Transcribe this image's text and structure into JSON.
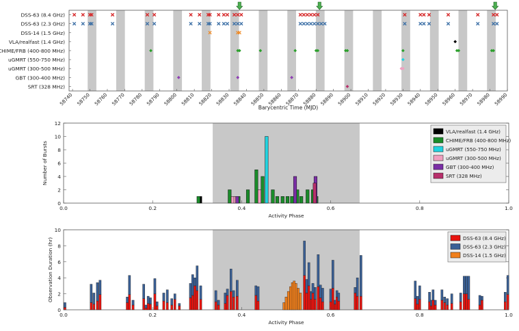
{
  "chart_data": [
    {
      "type": "scatter",
      "title": "",
      "xlabel": "Barycentric Time (MJD)",
      "ylabel": "",
      "xlim": [
        58738,
        58990
      ],
      "xticks": [
        58740,
        58750,
        58760,
        58770,
        58780,
        58790,
        58800,
        58810,
        58820,
        58830,
        58840,
        58850,
        58860,
        58870,
        58880,
        58890,
        58900,
        58910,
        58920,
        58930,
        58940,
        58950,
        58960,
        58970,
        58980,
        58990
      ],
      "rows": [
        "DSS-63 (8.4 GHz)",
        "DSS-63 (2.3 GHz)",
        "DSS-14 (1.5 GHz)",
        "VLA/realfast (1.4 GHz)",
        "CHIME/FRB (400-800 MHz)",
        "uGMRT (550-750 MHz)",
        "uGMRT (300-500 MHz)",
        "GBT (300-400 MHz)",
        "SRT (328 MHz)"
      ],
      "active_windows": [
        [
          58748.7,
          58753.7
        ],
        [
          58765.1,
          58770.1
        ],
        [
          58781.5,
          58786.5
        ],
        [
          58797.9,
          58802.9
        ],
        [
          58814.3,
          58819.3
        ],
        [
          58830.7,
          58835.7
        ],
        [
          58847.1,
          58852.1
        ],
        [
          58863.5,
          58868.5
        ],
        [
          58879.9,
          58884.9
        ],
        [
          58896.3,
          58901.3
        ],
        [
          58912.7,
          58917.7
        ],
        [
          58929.1,
          58934.1
        ],
        [
          58945.5,
          58950.5
        ],
        [
          58961.9,
          58966.9
        ],
        [
          58978.3,
          58983.3
        ]
      ],
      "detection_arrows_mjd": [
        58836,
        58882,
        58983
      ],
      "series": [
        {
          "name": "DSS-63 (8.4 GHz)",
          "row": 0,
          "marker": "x",
          "color": "#d62728",
          "x": [
            58741,
            58746,
            58750,
            58751,
            58763,
            58783,
            58787,
            58808,
            58813,
            58818,
            58819,
            58824,
            58827,
            58829,
            58833,
            58835,
            58837,
            58871,
            58873,
            58875,
            58877,
            58879,
            58881,
            58931,
            58940,
            58942,
            58945,
            58956,
            58973,
            58982,
            58984
          ]
        },
        {
          "name": "DSS-63 (2.3 GHz)",
          "row": 1,
          "marker": "x",
          "color": "#3a6ea5",
          "x": [
            58741,
            58746,
            58750,
            58751,
            58763,
            58783,
            58787,
            58808,
            58813,
            58818,
            58819,
            58824,
            58827,
            58829,
            58833,
            58835,
            58837,
            58871,
            58873,
            58875,
            58877,
            58879,
            58881,
            58883,
            58885,
            58931,
            58940,
            58942,
            58945,
            58956,
            58973,
            58982,
            58984
          ]
        },
        {
          "name": "DSS-14 (1.5 GHz)",
          "row": 2,
          "marker": "x",
          "color": "#f08a24",
          "x": [
            58819,
            58835,
            58836
          ]
        },
        {
          "name": "VLA/realfast (1.4 GHz)",
          "row": 3,
          "marker": "dot",
          "color": "#000000",
          "x": [
            58960
          ]
        },
        {
          "name": "CHIME/FRB (400-800 MHz)",
          "row": 4,
          "marker": "dot",
          "color": "#2ca02c",
          "x": [
            58785,
            58835,
            58836,
            58848,
            58868,
            58880,
            58881,
            58897,
            58898,
            58930,
            58961,
            58962,
            58981,
            58982
          ]
        },
        {
          "name": "uGMRT (550-750 MHz)",
          "row": 5,
          "marker": "dot",
          "color": "#22d3df",
          "x": [
            58930
          ]
        },
        {
          "name": "uGMRT (300-500 MHz)",
          "row": 6,
          "marker": "dot",
          "color": "#f0a0c0",
          "x": [
            58929,
            58930
          ]
        },
        {
          "name": "GBT (300-400 MHz)",
          "row": 7,
          "marker": "dot",
          "color": "#8e3fb3",
          "x": [
            58801,
            58835,
            58866
          ]
        },
        {
          "name": "SRT (328 MHz)",
          "row": 8,
          "marker": "dot",
          "color": "#b8306b",
          "x": [
            58898
          ]
        }
      ]
    },
    {
      "type": "bar",
      "title": "",
      "xlabel": "Activity Phase",
      "ylabel": "Number of Bursts",
      "xlim": [
        0,
        1
      ],
      "ylim": [
        0,
        12
      ],
      "xticks": [
        0.0,
        0.2,
        0.4,
        0.6,
        0.8,
        1.0
      ],
      "yticks": [
        0,
        2,
        4,
        6,
        8,
        10,
        12
      ],
      "active_phase": [
        0.335,
        0.665
      ],
      "legend_position": "top-right",
      "series": [
        {
          "name": "VLA/realfast (1.4 GHz)",
          "color": "#000000",
          "phases": [
            0.307
          ],
          "values": [
            1
          ]
        },
        {
          "name": "CHIME/FRB (400-800 MHz)",
          "color": "#1a8c2a",
          "phases": [
            0.303,
            0.373,
            0.393,
            0.414,
            0.433,
            0.447,
            0.47,
            0.48,
            0.492,
            0.503,
            0.513,
            0.525,
            0.534,
            0.548,
            0.56,
            0.568
          ],
          "values": [
            1,
            2,
            1,
            2,
            5,
            4,
            2,
            1,
            1,
            1,
            1,
            2,
            1,
            2,
            2,
            1
          ]
        },
        {
          "name": "uGMRT (550-750 MHz)",
          "color": "#22d3df",
          "phases": [
            0.456
          ],
          "values": [
            10
          ]
        },
        {
          "name": "uGMRT (300-500 MHz)",
          "color": "#f0a0c0",
          "phases": [
            0.38,
            0.386,
            0.44
          ],
          "values": [
            1,
            1,
            2
          ]
        },
        {
          "name": "GBT (300-400 MHz)",
          "color": "#7b2fa6",
          "phases": [
            0.39,
            0.52,
            0.566
          ],
          "values": [
            1,
            4,
            4
          ]
        },
        {
          "name": "SRT (328 MHz)",
          "color": "#b8306b",
          "phases": [
            0.564
          ],
          "values": [
            3
          ]
        }
      ]
    },
    {
      "type": "bar",
      "title": "",
      "xlabel": "Activity Phase",
      "ylabel": "Observation Duration (hr)",
      "xlim": [
        0,
        1
      ],
      "ylim": [
        0,
        10
      ],
      "xticks": [
        0.0,
        0.2,
        0.4,
        0.6,
        0.8,
        1.0
      ],
      "yticks": [
        0,
        2,
        4,
        6,
        8,
        10
      ],
      "active_phase": [
        0.335,
        0.665
      ],
      "legend_position": "top-right",
      "series_names": [
        "DSS-63 (8.4 GHz)",
        "DSS-63 (2.3 GHz)",
        "DSS-14 (1.5 GHz)"
      ],
      "series_colors": [
        "#e8140f",
        "#3a6096",
        "#f07f1b"
      ],
      "bars": [
        {
          "phase": 0.003,
          "dss63_8": 0.3,
          "dss63_2": 0.6,
          "dss14": 0
        },
        {
          "phase": 0.062,
          "dss63_8": 0.9,
          "dss63_2": 2.3,
          "dss14": 0
        },
        {
          "phase": 0.068,
          "dss63_8": 0.7,
          "dss63_2": 1.4,
          "dss14": 0
        },
        {
          "phase": 0.076,
          "dss63_8": 1.1,
          "dss63_2": 2.3,
          "dss14": 0
        },
        {
          "phase": 0.082,
          "dss63_8": 1.9,
          "dss63_2": 1.8,
          "dss14": 0
        },
        {
          "phase": 0.143,
          "dss63_8": 0.9,
          "dss63_2": 0.7,
          "dss14": 0
        },
        {
          "phase": 0.148,
          "dss63_8": 1.9,
          "dss63_2": 2.4,
          "dss14": 0
        },
        {
          "phase": 0.156,
          "dss63_8": 0.6,
          "dss63_2": 0.6,
          "dss14": 0
        },
        {
          "phase": 0.18,
          "dss63_8": 1.4,
          "dss63_2": 1.8,
          "dss14": 0
        },
        {
          "phase": 0.185,
          "dss63_8": 0.2,
          "dss63_2": 0.4,
          "dss14": 0
        },
        {
          "phase": 0.19,
          "dss63_8": 0.8,
          "dss63_2": 0.9,
          "dss14": 0
        },
        {
          "phase": 0.195,
          "dss63_8": 0.7,
          "dss63_2": 0.8,
          "dss14": 0
        },
        {
          "phase": 0.205,
          "dss63_8": 2.0,
          "dss63_2": 1.9,
          "dss14": 0
        },
        {
          "phase": 0.21,
          "dss63_8": 0.5,
          "dss63_2": 0.5,
          "dss14": 0
        },
        {
          "phase": 0.225,
          "dss63_8": 1.1,
          "dss63_2": 1.0,
          "dss14": 0
        },
        {
          "phase": 0.233,
          "dss63_8": 0.9,
          "dss63_2": 1.6,
          "dss14": 0
        },
        {
          "phase": 0.243,
          "dss63_8": 0.6,
          "dss63_2": 0.8,
          "dss14": 0
        },
        {
          "phase": 0.25,
          "dss63_8": 1.3,
          "dss63_2": 0.7,
          "dss14": 0
        },
        {
          "phase": 0.26,
          "dss63_8": 0.5,
          "dss63_2": 0.3,
          "dss14": 0
        },
        {
          "phase": 0.285,
          "dss63_8": 1.5,
          "dss63_2": 1.8,
          "dss14": 0
        },
        {
          "phase": 0.29,
          "dss63_8": 1.8,
          "dss63_2": 2.6,
          "dss14": 0
        },
        {
          "phase": 0.295,
          "dss63_8": 3.0,
          "dss63_2": 1.0,
          "dss14": 0
        },
        {
          "phase": 0.3,
          "dss63_8": 2.4,
          "dss63_2": 3.1,
          "dss14": 0
        },
        {
          "phase": 0.308,
          "dss63_8": 1.3,
          "dss63_2": 1.7,
          "dss14": 0
        },
        {
          "phase": 0.342,
          "dss63_8": 1.0,
          "dss63_2": 1.4,
          "dss14": 0
        },
        {
          "phase": 0.348,
          "dss63_8": 0.6,
          "dss63_2": 0.6,
          "dss14": 0
        },
        {
          "phase": 0.363,
          "dss63_8": 0.8,
          "dss63_2": 1.3,
          "dss14": 0
        },
        {
          "phase": 0.368,
          "dss63_8": 1.8,
          "dss63_2": 0.8,
          "dss14": 0
        },
        {
          "phase": 0.376,
          "dss63_8": 2.3,
          "dss63_2": 2.8,
          "dss14": 0
        },
        {
          "phase": 0.382,
          "dss63_8": 1.6,
          "dss63_2": 0.8,
          "dss14": 0
        },
        {
          "phase": 0.39,
          "dss63_8": 1.7,
          "dss63_2": 2.0,
          "dss14": 0
        },
        {
          "phase": 0.432,
          "dss63_8": 1.8,
          "dss63_2": 1.2,
          "dss14": 0
        },
        {
          "phase": 0.437,
          "dss63_8": 1.1,
          "dss63_2": 1.8,
          "dss14": 0
        },
        {
          "phase": 0.495,
          "dss63_8": 0,
          "dss63_2": 0,
          "dss14": 0.9
        },
        {
          "phase": 0.5,
          "dss63_8": 0,
          "dss63_2": 0,
          "dss14": 1.6
        },
        {
          "phase": 0.505,
          "dss63_8": 0,
          "dss63_2": 0,
          "dss14": 2.3
        },
        {
          "phase": 0.51,
          "dss63_8": 0,
          "dss63_2": 0,
          "dss14": 2.9
        },
        {
          "phase": 0.514,
          "dss63_8": 0,
          "dss63_2": 0,
          "dss14": 3.4
        },
        {
          "phase": 0.518,
          "dss63_8": 0,
          "dss63_2": 0,
          "dss14": 3.6
        },
        {
          "phase": 0.522,
          "dss63_8": 0,
          "dss63_2": 0,
          "dss14": 3.3
        },
        {
          "phase": 0.527,
          "dss63_8": 0,
          "dss63_2": 0,
          "dss14": 2.7
        },
        {
          "phase": 0.532,
          "dss63_8": 0,
          "dss63_2": 0,
          "dss14": 2.1
        },
        {
          "phase": 0.541,
          "dss63_8": 4.3,
          "dss63_2": 4.3,
          "dss14": 0
        },
        {
          "phase": 0.546,
          "dss63_8": 2.1,
          "dss63_2": 1.7,
          "dss14": 0
        },
        {
          "phase": 0.551,
          "dss63_8": 3.0,
          "dss63_2": 2.9,
          "dss14": 0
        },
        {
          "phase": 0.556,
          "dss63_8": 1.3,
          "dss63_2": 1.0,
          "dss14": 0
        },
        {
          "phase": 0.56,
          "dss63_8": 2.1,
          "dss63_2": 1.2,
          "dss14": 0
        },
        {
          "phase": 0.565,
          "dss63_8": 1.3,
          "dss63_2": 1.5,
          "dss14": 0
        },
        {
          "phase": 0.572,
          "dss63_8": 2.9,
          "dss63_2": 4.0,
          "dss14": 0
        },
        {
          "phase": 0.577,
          "dss63_8": 1.5,
          "dss63_2": 1.6,
          "dss14": 0
        },
        {
          "phase": 0.582,
          "dss63_8": 1.0,
          "dss63_2": 1.7,
          "dss14": 0
        },
        {
          "phase": 0.6,
          "dss63_8": 1.0,
          "dss63_2": 1.6,
          "dss14": 0
        },
        {
          "phase": 0.605,
          "dss63_8": 2.7,
          "dss63_2": 3.5,
          "dss14": 0
        },
        {
          "phase": 0.61,
          "dss63_8": 0.7,
          "dss63_2": 0.5,
          "dss14": 0
        },
        {
          "phase": 0.614,
          "dss63_8": 1.6,
          "dss63_2": 0.8,
          "dss14": 0
        },
        {
          "phase": 0.618,
          "dss63_8": 1.1,
          "dss63_2": 1.0,
          "dss14": 0
        },
        {
          "phase": 0.655,
          "dss63_8": 2.1,
          "dss63_2": 0.7,
          "dss14": 0
        },
        {
          "phase": 0.66,
          "dss63_8": 1.7,
          "dss63_2": 2.3,
          "dss14": 0
        },
        {
          "phase": 0.668,
          "dss63_8": 1.7,
          "dss63_2": 5.1,
          "dss14": 0
        },
        {
          "phase": 0.79,
          "dss63_8": 1.4,
          "dss63_2": 2.2,
          "dss14": 0
        },
        {
          "phase": 0.795,
          "dss63_8": 0.7,
          "dss63_2": 1.0,
          "dss14": 0
        },
        {
          "phase": 0.8,
          "dss63_8": 1.3,
          "dss63_2": 1.7,
          "dss14": 0
        },
        {
          "phase": 0.822,
          "dss63_8": 1.0,
          "dss63_2": 1.2,
          "dss14": 0
        },
        {
          "phase": 0.826,
          "dss63_8": 0.5,
          "dss63_2": 0.7,
          "dss14": 0
        },
        {
          "phase": 0.83,
          "dss63_8": 1.2,
          "dss63_2": 1.3,
          "dss14": 0
        },
        {
          "phase": 0.835,
          "dss63_8": 0.6,
          "dss63_2": 0.6,
          "dss14": 0
        },
        {
          "phase": 0.85,
          "dss63_8": 1.2,
          "dss63_2": 1.3,
          "dss14": 0
        },
        {
          "phase": 0.856,
          "dss63_8": 0.9,
          "dss63_2": 0.7,
          "dss14": 0
        },
        {
          "phase": 0.862,
          "dss63_8": 0.6,
          "dss63_2": 0.8,
          "dss14": 0
        },
        {
          "phase": 0.872,
          "dss63_8": 0.8,
          "dss63_2": 1.2,
          "dss14": 0
        },
        {
          "phase": 0.892,
          "dss63_8": 1.0,
          "dss63_2": 1.1,
          "dss14": 0
        },
        {
          "phase": 0.9,
          "dss63_8": 2.0,
          "dss63_2": 2.2,
          "dss14": 0
        },
        {
          "phase": 0.905,
          "dss63_8": 2.0,
          "dss63_2": 2.2,
          "dss14": 0
        },
        {
          "phase": 0.91,
          "dss63_8": 1.3,
          "dss63_2": 2.9,
          "dss14": 0
        },
        {
          "phase": 0.935,
          "dss63_8": 0.6,
          "dss63_2": 1.2,
          "dss14": 0
        },
        {
          "phase": 0.94,
          "dss63_8": 1.2,
          "dss63_2": 0.5,
          "dss14": 0
        },
        {
          "phase": 0.992,
          "dss63_8": 1.0,
          "dss63_2": 1.2,
          "dss14": 0
        },
        {
          "phase": 0.998,
          "dss63_8": 1.9,
          "dss63_2": 2.4,
          "dss14": 0
        }
      ]
    }
  ]
}
